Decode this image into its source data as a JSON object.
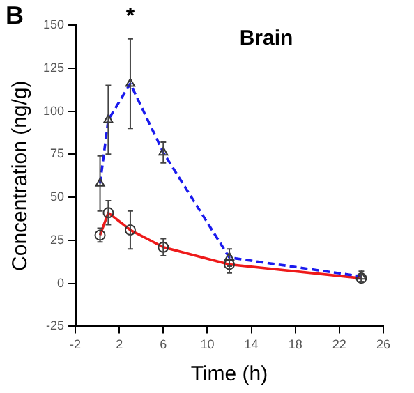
{
  "chart_data": {
    "type": "line",
    "title": "Brain",
    "xlabel": "Time (h)",
    "ylabel": "Concentration (ng/g)",
    "xlim": [
      -2,
      26
    ],
    "xticks": [
      -2,
      2,
      6,
      10,
      14,
      18,
      22,
      26
    ],
    "ylim": [
      -25,
      150
    ],
    "yticks": [
      -25,
      0,
      25,
      50,
      75,
      100,
      125,
      150
    ],
    "grid": false,
    "legend": false,
    "series": [
      {
        "color": "#1a1aee",
        "x": [
          0.25,
          1,
          3,
          6,
          12,
          24
        ],
        "values": [
          58,
          95,
          116,
          76,
          15,
          4
        ],
        "errors": [
          16,
          20,
          26,
          6,
          5,
          3
        ],
        "marker": "triangle",
        "line_style": "dashed"
      },
      {
        "color": "#ee1a1a",
        "x": [
          0.25,
          1,
          3,
          6,
          12,
          24
        ],
        "values": [
          28,
          41,
          31,
          21,
          11,
          3
        ],
        "errors": [
          4,
          7,
          11,
          5,
          5,
          2
        ],
        "marker": "circle",
        "line_style": "solid"
      }
    ],
    "annotations": [
      "B",
      {
        "text": "*",
        "x": 3,
        "y": 116
      }
    ]
  }
}
